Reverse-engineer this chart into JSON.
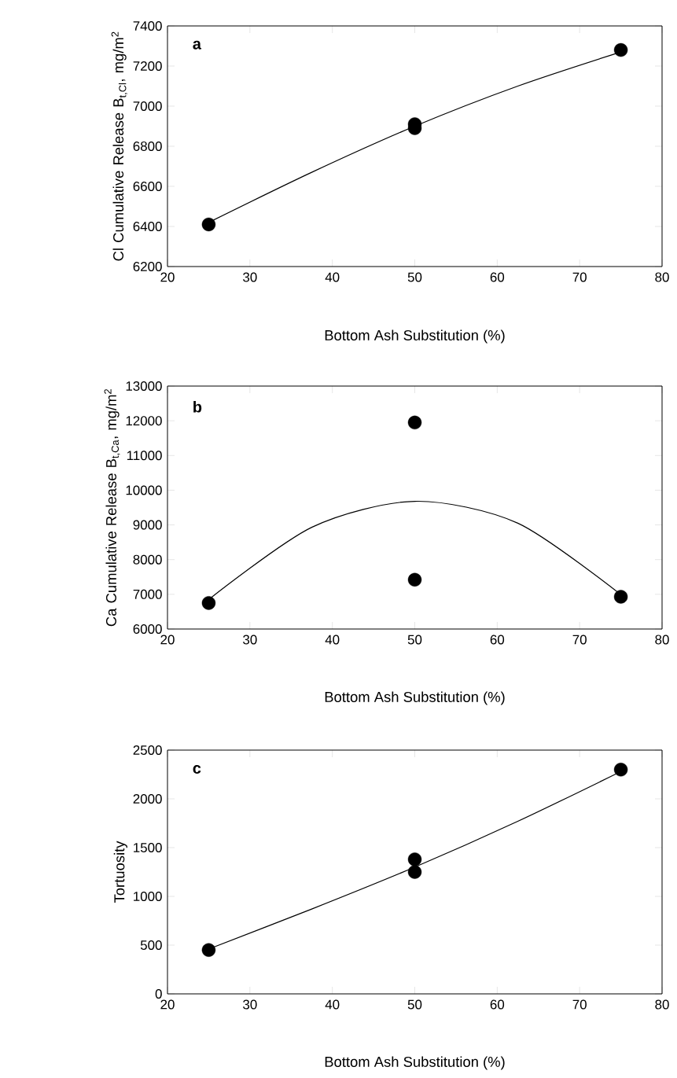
{
  "chart_data": [
    {
      "type": "scatter",
      "xlabel": "Bottom Ash Substitution (%)",
      "ylabel": "Cl Cumulative Release B$_{t,Cl}$, mg/m$^{2}$",
      "xlim": [
        20,
        80
      ],
      "xticks": [
        20,
        30,
        40,
        50,
        60,
        70,
        80
      ],
      "ylim": [
        6200,
        7400
      ],
      "yticks": [
        6200,
        6400,
        6600,
        6800,
        7000,
        7200,
        7400
      ],
      "marker": "circle",
      "annotations": [
        "a"
      ],
      "series": [
        {
          "x": [
            25,
            50,
            50,
            75
          ],
          "values": [
            6410,
            6910,
            6890,
            7280
          ],
          "color": "#000000"
        },
        {
          "type": "line",
          "x": [
            25,
            37.5,
            50,
            62.5,
            75
          ],
          "values": [
            6420,
            6670,
            6900,
            7100,
            7270
          ],
          "color": "#000000",
          "marker": "none"
        }
      ]
    },
    {
      "type": "scatter",
      "xlabel": "Bottom Ash Substitution (%)",
      "ylabel": "Ca Cumulative Release B$_{t,Ca}$, mg/m$^{2}$",
      "xlim": [
        20,
        80
      ],
      "xticks": [
        20,
        30,
        40,
        50,
        60,
        70,
        80
      ],
      "ylim": [
        6000,
        13000
      ],
      "yticks": [
        6000,
        7000,
        8000,
        9000,
        10000,
        11000,
        12000,
        13000
      ],
      "marker": "circle",
      "annotations": [
        "b"
      ],
      "series": [
        {
          "x": [
            25,
            50,
            50,
            75
          ],
          "values": [
            6750,
            11950,
            7420,
            6930
          ],
          "color": "#000000"
        },
        {
          "type": "line",
          "x": [
            25,
            37.5,
            50,
            62.5,
            75
          ],
          "values": [
            6850,
            8930,
            9680,
            9050,
            6990
          ],
          "color": "#000000",
          "marker": "none"
        }
      ]
    },
    {
      "type": "scatter",
      "xlabel": "Bottom Ash Substitution (%)",
      "ylabel": "Tortuosity",
      "xlim": [
        20,
        80
      ],
      "xticks": [
        20,
        30,
        40,
        50,
        60,
        70,
        80
      ],
      "ylim": [
        0,
        2500
      ],
      "yticks": [
        0,
        500,
        1000,
        1500,
        2000,
        2500
      ],
      "marker": "circle",
      "annotations": [
        "c"
      ],
      "series": [
        {
          "x": [
            25,
            50,
            50,
            75
          ],
          "values": [
            450,
            1380,
            1250,
            2300
          ],
          "color": "#000000"
        },
        {
          "type": "line",
          "x": [
            25,
            37.5,
            50,
            62.5,
            75
          ],
          "values": [
            460,
            870,
            1300,
            1770,
            2280
          ],
          "color": "#000000",
          "marker": "none"
        }
      ]
    }
  ]
}
